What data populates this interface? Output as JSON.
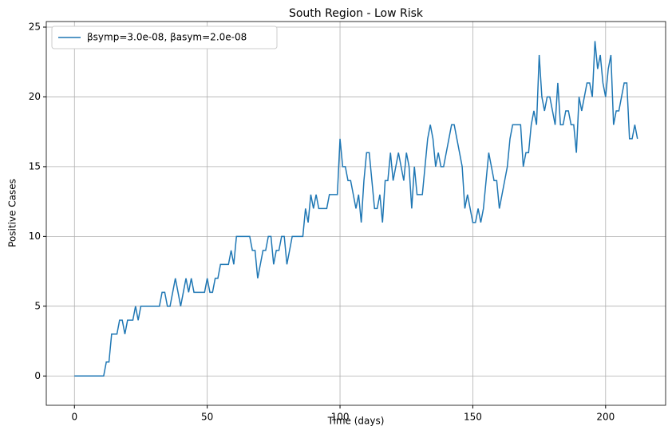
{
  "chart_data": {
    "type": "line",
    "title": "South Region - Low Risk",
    "xlabel": "Time (days)",
    "ylabel": "Positive Cases",
    "x": [
      0,
      1,
      2,
      3,
      4,
      5,
      6,
      7,
      8,
      9,
      10,
      11,
      12,
      13,
      14,
      15,
      16,
      17,
      18,
      19,
      20,
      21,
      22,
      23,
      24,
      25,
      26,
      27,
      28,
      29,
      30,
      31,
      32,
      33,
      34,
      35,
      36,
      37,
      38,
      39,
      40,
      41,
      42,
      43,
      44,
      45,
      46,
      47,
      48,
      49,
      50,
      51,
      52,
      53,
      54,
      55,
      56,
      57,
      58,
      59,
      60,
      61,
      62,
      63,
      64,
      65,
      66,
      67,
      68,
      69,
      70,
      71,
      72,
      73,
      74,
      75,
      76,
      77,
      78,
      79,
      80,
      81,
      82,
      83,
      84,
      85,
      86,
      87,
      88,
      89,
      90,
      91,
      92,
      93,
      94,
      95,
      96,
      97,
      98,
      99,
      100,
      101,
      102,
      103,
      104,
      105,
      106,
      107,
      108,
      109,
      110,
      111,
      112,
      113,
      114,
      115,
      116,
      117,
      118,
      119,
      120,
      121,
      122,
      123,
      124,
      125,
      126,
      127,
      128,
      129,
      130,
      131,
      132,
      133,
      134,
      135,
      136,
      137,
      138,
      139,
      140,
      141,
      142,
      143,
      144,
      145,
      146,
      147,
      148,
      149,
      150,
      151,
      152,
      153,
      154,
      155,
      156,
      157,
      158,
      159,
      160,
      161,
      162,
      163,
      164,
      165,
      166,
      167,
      168,
      169,
      170,
      171,
      172,
      173,
      174,
      175,
      176,
      177,
      178,
      179,
      180,
      181,
      182,
      183,
      184,
      185,
      186,
      187,
      188,
      189,
      190,
      191,
      192,
      193,
      194,
      195,
      196,
      197,
      198,
      199,
      200,
      201,
      202,
      203,
      204,
      205,
      206,
      207,
      208,
      209,
      210,
      211,
      212
    ],
    "series": [
      {
        "name": "βsymp=3.0e-08, βasym=2.0e-08",
        "color": "#1f77b4",
        "values": [
          0,
          0,
          0,
          0,
          0,
          0,
          0,
          0,
          0,
          0,
          0,
          0,
          1,
          1,
          3,
          3,
          3,
          4,
          4,
          3,
          4,
          4,
          4,
          5,
          4,
          5,
          5,
          5,
          5,
          5,
          5,
          5,
          5,
          6,
          6,
          5,
          5,
          6,
          7,
          6,
          5,
          6,
          7,
          6,
          7,
          6,
          6,
          6,
          6,
          6,
          7,
          6,
          6,
          7,
          7,
          8,
          8,
          8,
          8,
          9,
          8,
          10,
          10,
          10,
          10,
          10,
          10,
          9,
          9,
          7,
          8,
          9,
          9,
          10,
          10,
          8,
          9,
          9,
          10,
          10,
          8,
          9,
          10,
          10,
          10,
          10,
          10,
          12,
          11,
          13,
          12,
          13,
          12,
          12,
          12,
          12,
          13,
          13,
          13,
          13,
          17,
          15,
          15,
          14,
          14,
          13,
          12,
          13,
          11,
          14,
          16,
          16,
          14,
          12,
          12,
          13,
          11,
          14,
          14,
          16,
          14,
          15,
          16,
          15,
          14,
          16,
          15,
          12,
          15,
          13,
          13,
          13,
          15,
          17,
          18,
          17,
          15,
          16,
          15,
          15,
          16,
          17,
          18,
          18,
          17,
          16,
          15,
          12,
          13,
          12,
          11,
          11,
          12,
          11,
          12,
          14,
          16,
          15,
          14,
          14,
          12,
          13,
          14,
          15,
          17,
          18,
          18,
          18,
          18,
          15,
          16,
          16,
          18,
          19,
          18,
          23,
          20,
          19,
          20,
          20,
          19,
          18,
          21,
          18,
          18,
          19,
          19,
          18,
          18,
          16,
          20,
          19,
          20,
          21,
          21,
          20,
          24,
          22,
          23,
          21,
          20,
          22,
          23,
          18,
          19,
          19,
          20,
          21,
          21,
          17,
          17,
          18,
          17
        ]
      }
    ],
    "xlim": [
      -10.6,
      222.6
    ],
    "ylim": [
      -2.1,
      25.4
    ],
    "xticks": [
      0,
      50,
      100,
      150,
      200
    ],
    "yticks": [
      0,
      5,
      10,
      15,
      20,
      25
    ],
    "grid": true,
    "legend": "upper left"
  }
}
